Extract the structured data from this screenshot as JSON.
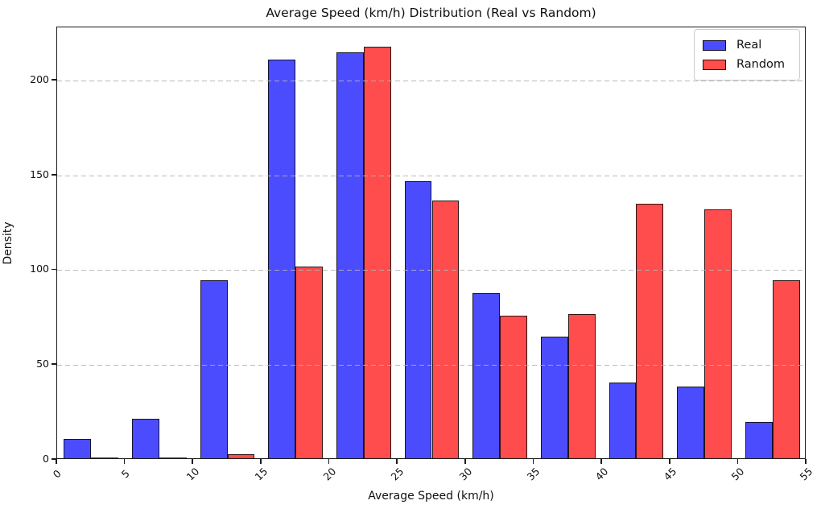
{
  "figure": {
    "title": "Average Speed (km/h) Distribution (Real vs Random)",
    "xlabel": "Average Speed (km/h)",
    "ylabel": "Density"
  },
  "legend": {
    "position": "upper-right",
    "items": [
      {
        "label": "Real",
        "color": "rgba(0,0,255,0.7)"
      },
      {
        "label": "Random",
        "color": "rgba(255,0,0,0.7)"
      }
    ]
  },
  "chart_data": {
    "type": "bar",
    "subtype": "grouped-histogram",
    "title": "Average Speed (km/h) Distribution (Real vs Random)",
    "xlabel": "Average Speed (km/h)",
    "ylabel": "Density",
    "bin_edges": [
      0,
      5,
      10,
      15,
      20,
      25,
      30,
      35,
      40,
      45,
      50,
      55
    ],
    "series": [
      {
        "name": "Real",
        "color": "rgba(0,0,255,0.7)",
        "edgecolor": "rgba(10,10,10,0.85)",
        "values": [
          10,
          21,
          94,
          210,
          214,
          146,
          87,
          64,
          40,
          38,
          19
        ]
      },
      {
        "name": "Random",
        "color": "rgba(255,0,0,0.7)",
        "edgecolor": "rgba(10,10,10,0.85)",
        "values": [
          0,
          0,
          2,
          101,
          217,
          136,
          75,
          76,
          134,
          131,
          94
        ]
      }
    ],
    "xlim": [
      0,
      55
    ],
    "ylim": [
      0,
      228
    ],
    "xticks": [
      0,
      5,
      10,
      15,
      20,
      25,
      30,
      35,
      40,
      45,
      50,
      55
    ],
    "yticks": [
      0,
      50,
      100,
      150,
      200
    ],
    "x_tick_rotation": 45,
    "grid": {
      "axis": "y",
      "style": "dashed",
      "color": "#b2b2b2",
      "on_top_of_bars": true
    },
    "legend_position": "upper right"
  }
}
